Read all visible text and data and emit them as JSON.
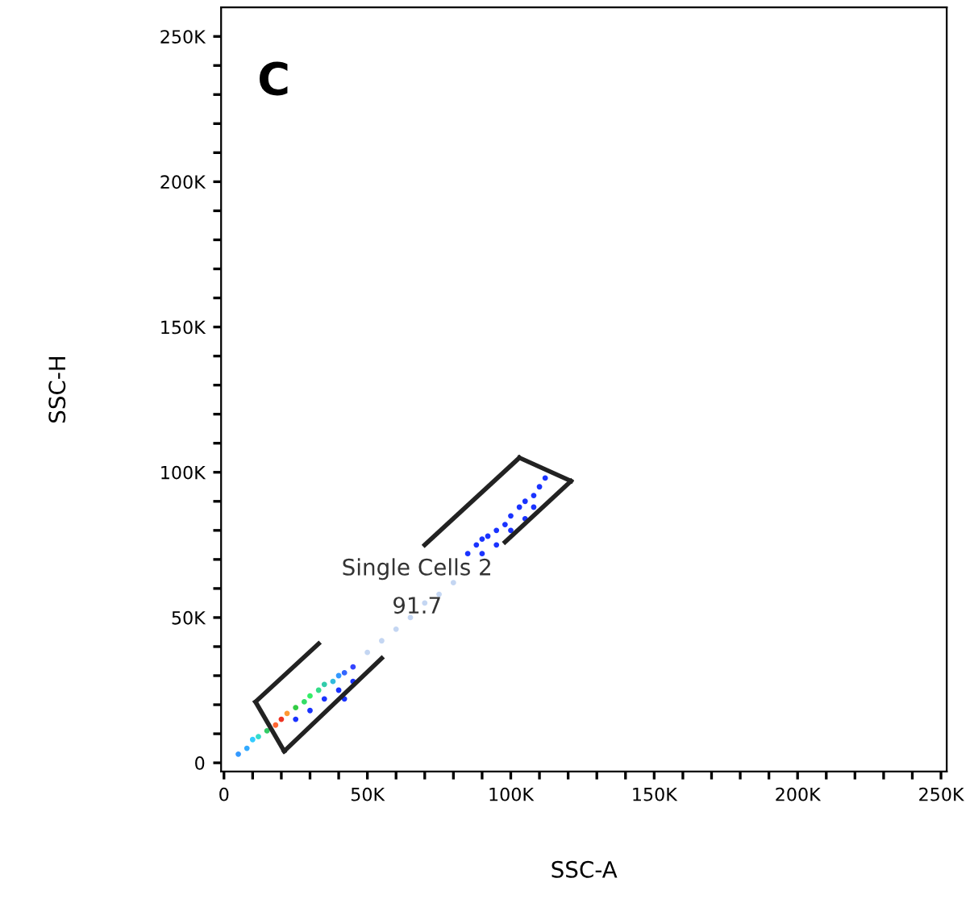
{
  "chart_data": {
    "type": "scatter",
    "xlabel": "SSC-A",
    "ylabel": "SSC-H",
    "xlim": [
      -1000,
      252000
    ],
    "ylim": [
      -3000,
      260000
    ],
    "xticks": [
      0,
      {
        "value": 10000,
        "label": null
      },
      {
        "value": 20000,
        "label": null
      },
      {
        "value": 30000,
        "label": null
      },
      {
        "value": 40000,
        "label": null
      },
      {
        "value": 50000,
        "label": "50K"
      },
      {
        "value": 60000,
        "label": null
      },
      {
        "value": 70000,
        "label": null
      },
      {
        "value": 80000,
        "label": null
      },
      {
        "value": 90000,
        "label": null
      },
      {
        "value": 100000,
        "label": "100K"
      },
      {
        "value": 110000,
        "label": null
      },
      {
        "value": 120000,
        "label": null
      },
      {
        "value": 130000,
        "label": null
      },
      {
        "value": 140000,
        "label": null
      },
      {
        "value": 150000,
        "label": "150K"
      },
      {
        "value": 160000,
        "label": null
      },
      {
        "value": 170000,
        "label": null
      },
      {
        "value": 180000,
        "label": null
      },
      {
        "value": 190000,
        "label": null
      },
      {
        "value": 200000,
        "label": "200K"
      },
      {
        "value": 210000,
        "label": null
      },
      {
        "value": 220000,
        "label": null
      },
      {
        "value": 230000,
        "label": null
      },
      {
        "value": 240000,
        "label": null
      },
      {
        "value": 250000,
        "label": "250K"
      }
    ],
    "yticks": [
      0,
      {
        "value": 10000,
        "label": null
      },
      {
        "value": 20000,
        "label": null
      },
      {
        "value": 30000,
        "label": null
      },
      {
        "value": 40000,
        "label": null
      },
      {
        "value": 50000,
        "label": "50K"
      },
      {
        "value": 60000,
        "label": null
      },
      {
        "value": 70000,
        "label": null
      },
      {
        "value": 80000,
        "label": null
      },
      {
        "value": 90000,
        "label": null
      },
      {
        "value": 100000,
        "label": "100K"
      },
      {
        "value": 110000,
        "label": null
      },
      {
        "value": 120000,
        "label": null
      },
      {
        "value": 130000,
        "label": null
      },
      {
        "value": 140000,
        "label": null
      },
      {
        "value": 150000,
        "label": "150K"
      },
      {
        "value": 160000,
        "label": null
      },
      {
        "value": 170000,
        "label": null
      },
      {
        "value": 180000,
        "label": null
      },
      {
        "value": 190000,
        "label": null
      },
      {
        "value": 200000,
        "label": "200K"
      },
      {
        "value": 210000,
        "label": null
      },
      {
        "value": 220000,
        "label": null
      },
      {
        "value": 230000,
        "label": null
      },
      {
        "value": 240000,
        "label": null
      },
      {
        "value": 250000,
        "label": "250K"
      }
    ],
    "grid": false,
    "marker": "circle",
    "annotations": [
      "C",
      "Single Cells 2",
      "91.7"
    ],
    "series": [
      {
        "x": [
          5000,
          8000,
          10000,
          12000,
          15000,
          18000,
          20000,
          22000,
          25000,
          28000,
          30000,
          33000,
          35000,
          38000,
          40000,
          42000,
          45000
        ],
        "values": [
          3000,
          5000,
          8000,
          9000,
          11000,
          13000,
          15000,
          17000,
          19000,
          21000,
          23000,
          25000,
          27000,
          28000,
          30000,
          31000,
          33000
        ],
        "colors": [
          "#3399ff",
          "#33aaff",
          "#33ccff",
          "#33ddcc",
          "#33cc66",
          "#ff6633",
          "#ee3322",
          "#ff9933",
          "#33cc44",
          "#33dd66",
          "#33ee66",
          "#33dd88",
          "#33ccaa",
          "#33bbdd",
          "#3399ff",
          "#3366ff",
          "#3344ff"
        ]
      },
      {
        "color": "#1a33ff",
        "x": [
          25000,
          30000,
          35000,
          40000,
          45000,
          42000,
          85000,
          88000,
          90000,
          92000,
          95000,
          98000,
          100000,
          103000,
          105000,
          108000,
          110000,
          112000,
          95000,
          100000,
          105000,
          90000,
          108000
        ],
        "values": [
          15000,
          18000,
          22000,
          25000,
          28000,
          22000,
          72000,
          75000,
          77000,
          78000,
          80000,
          82000,
          85000,
          88000,
          90000,
          92000,
          95000,
          98000,
          75000,
          80000,
          84000,
          72000,
          88000
        ]
      },
      {
        "color": "#c4d6f2",
        "x": [
          50000,
          55000,
          60000,
          65000,
          70000,
          75000,
          80000
        ],
        "values": [
          38000,
          42000,
          46000,
          50000,
          55000,
          58000,
          62000
        ]
      },
      {
        "type": "line",
        "marker": "none",
        "color": "#222222",
        "x": [
          11000,
          33000
        ],
        "values": [
          21000,
          41000
        ]
      },
      {
        "type": "line",
        "marker": "none",
        "color": "#222222",
        "x": [
          70000,
          103000
        ],
        "values": [
          75000,
          105000
        ]
      },
      {
        "type": "line",
        "marker": "none",
        "color": "#222222",
        "x": [
          103000,
          121000
        ],
        "values": [
          105000,
          97000
        ]
      },
      {
        "type": "line",
        "marker": "none",
        "color": "#222222",
        "x": [
          98000,
          121000
        ],
        "values": [
          76000,
          97000
        ]
      },
      {
        "type": "line",
        "marker": "none",
        "color": "#222222",
        "x": [
          21000,
          55000
        ],
        "values": [
          4000,
          36000
        ]
      },
      {
        "type": "line",
        "marker": "none",
        "color": "#222222",
        "x": [
          11000,
          21000
        ],
        "values": [
          21000,
          4000
        ]
      }
    ]
  }
}
